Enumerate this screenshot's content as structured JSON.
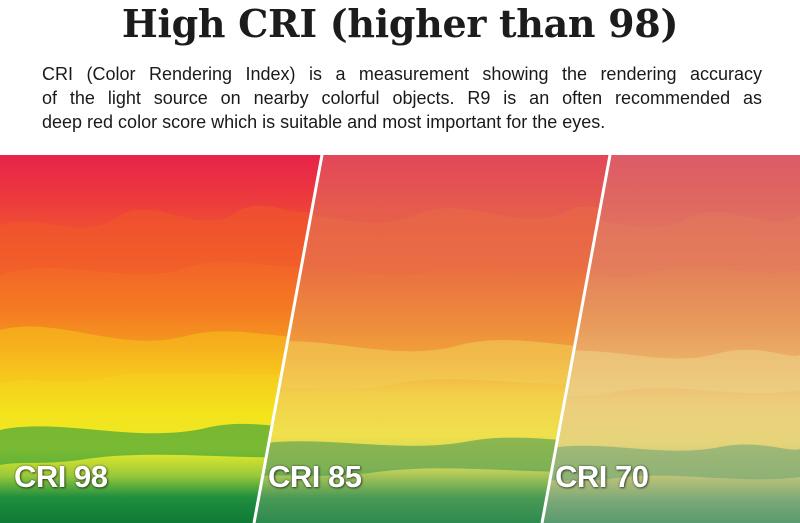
{
  "title": "High CRI (higher than 98)",
  "description": {
    "line1": "CRI (Color Rendering Index) is a measurement showing the rendering accuracy",
    "line2": "of the light source on nearby colorful objects. R9 is an often recommended as",
    "line3": "deep red color score which is suitable and most important for the eyes."
  },
  "panels": [
    {
      "label": "CRI 98"
    },
    {
      "label": "CRI 85"
    },
    {
      "label": "CRI 70"
    }
  ],
  "colors": {
    "title_text": "#1c1c1c",
    "label_text": "#ffffff",
    "divider": "#ffffff"
  }
}
